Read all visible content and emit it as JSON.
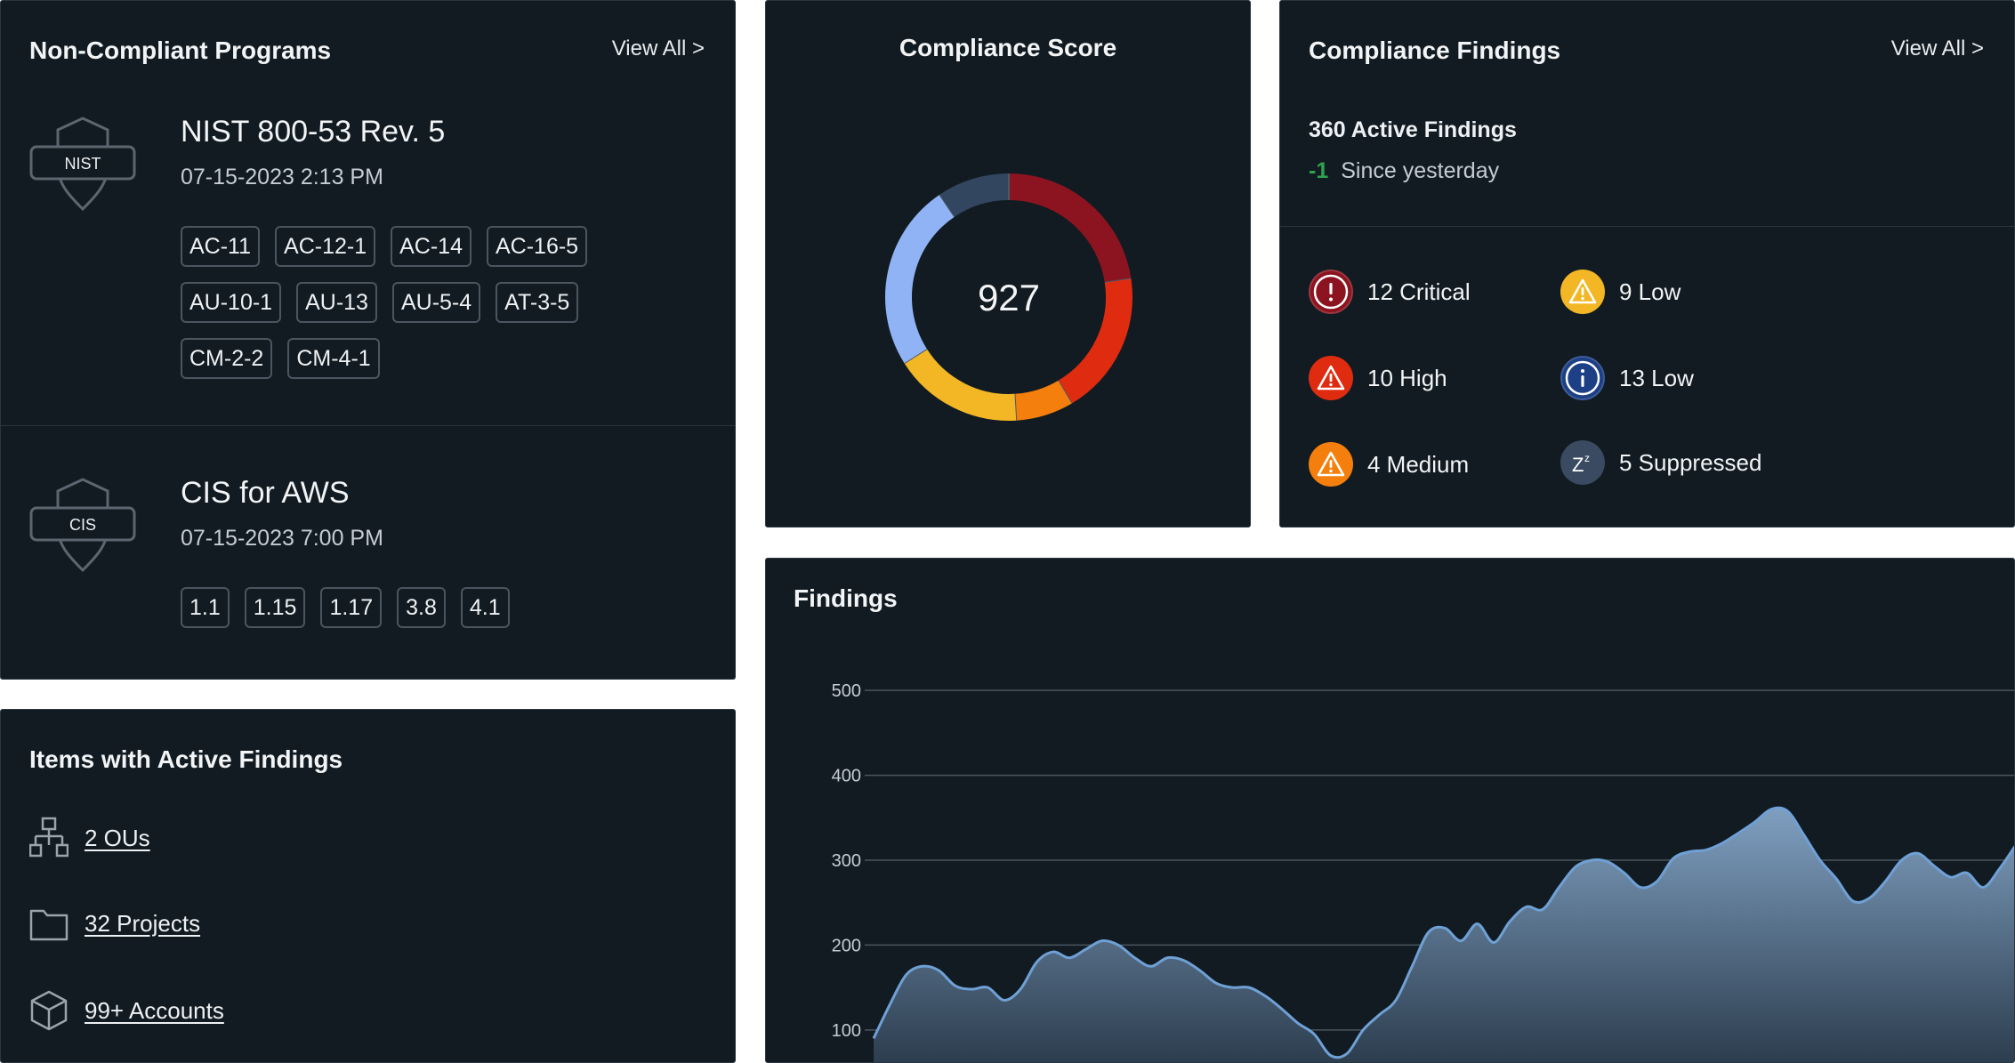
{
  "programs_card": {
    "title": "Non-Compliant Programs",
    "view_all": "View All >",
    "programs": [
      {
        "badge": "NIST",
        "name": "NIST 800-53 Rev. 5",
        "date": "07-15-2023 2:13 PM",
        "controls": [
          "AC-11",
          "AC-12-1",
          "AC-14",
          "AC-16-5",
          "AU-10-1",
          "AU-13",
          "AU-5-4",
          "AT-3-5",
          "CM-2-2",
          "CM-4-1"
        ]
      },
      {
        "badge": "CIS",
        "name": "CIS for AWS",
        "date": "07-15-2023 7:00 PM",
        "controls": [
          "1.1",
          "1.15",
          "1.17",
          "3.8",
          "4.1"
        ]
      }
    ]
  },
  "score_card": {
    "title": "Compliance Score",
    "score": "927",
    "segments": [
      {
        "name": "critical",
        "value": 12,
        "color": "#8b1420"
      },
      {
        "name": "high",
        "value": 10,
        "color": "#df2c10"
      },
      {
        "name": "medium",
        "value": 4,
        "color": "#f57f0c"
      },
      {
        "name": "low-warning",
        "value": 9,
        "color": "#f3b726"
      },
      {
        "name": "low-info",
        "value": 13,
        "color": "#8fb3f5"
      },
      {
        "name": "suppressed",
        "value": 5,
        "color": "#334660"
      }
    ]
  },
  "findings_card": {
    "title": "Compliance Findings",
    "view_all": "View All >",
    "active": "360 Active Findings",
    "delta": "-1",
    "delta_label": "Since yesterday",
    "severities": [
      {
        "label": "12 Critical",
        "icon": "exclamation-icon",
        "color": "#8b1420"
      },
      {
        "label": "10 High",
        "icon": "warning-icon",
        "color": "#df2c10"
      },
      {
        "label": "4 Medium",
        "icon": "warning-icon",
        "color": "#f57f0c"
      },
      {
        "label": "9 Low",
        "icon": "warning-icon",
        "color": "#f3b726"
      },
      {
        "label": "13 Low",
        "icon": "info-icon",
        "color": "#1d3f86"
      },
      {
        "label": "5 Suppressed",
        "icon": "sleep-icon",
        "color": "#3a4a60"
      }
    ],
    "delta_color": "#2ea44f"
  },
  "items_card": {
    "title": "Items with Active Findings",
    "items": [
      {
        "label": "2 OUs",
        "icon": "hierarchy-icon"
      },
      {
        "label": "32 Projects",
        "icon": "folder-icon"
      },
      {
        "label": "99+ Accounts",
        "icon": "cube-icon"
      }
    ]
  },
  "chart_data": {
    "type": "area",
    "title": "Findings",
    "xlabel": "",
    "ylabel": "",
    "y_ticks": [
      100,
      200,
      300,
      400,
      500
    ],
    "ylim": [
      60,
      540
    ],
    "grid": true,
    "series": [
      {
        "values": [
          90,
          130,
          165,
          175,
          170,
          152,
          148,
          150,
          135,
          148,
          180,
          192,
          185,
          195,
          205,
          200,
          185,
          175,
          185,
          182,
          170,
          155,
          150,
          150,
          140,
          125,
          108,
          95,
          70,
          72,
          100,
          118,
          135,
          175,
          215,
          220,
          205,
          225,
          203,
          228,
          245,
          242,
          268,
          292,
          300,
          298,
          285,
          268,
          275,
          302,
          310,
          312,
          320,
          332,
          345,
          360,
          358,
          330,
          300,
          278,
          252,
          255,
          275,
          300,
          308,
          293,
          280,
          285,
          268,
          290,
          318
        ]
      }
    ]
  }
}
